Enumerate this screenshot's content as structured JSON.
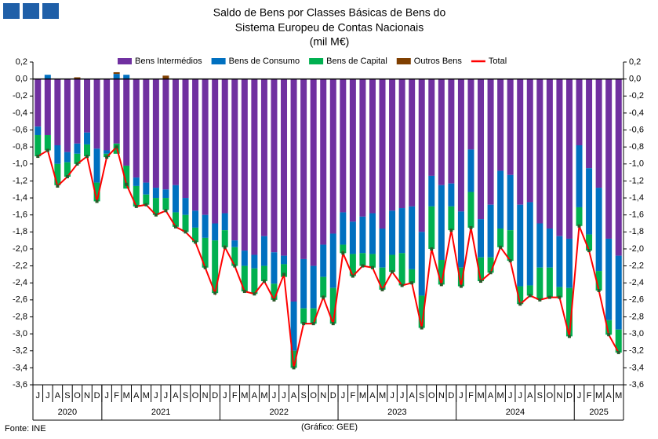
{
  "chart_data": {
    "type": "bar",
    "stacked": true,
    "title": [
      "Saldo de Bens por Classes Básicas de Bens do",
      "Sistema Europeu de Contas Nacionais",
      "(mil M€)"
    ],
    "categories": [
      "J",
      "J",
      "A",
      "S",
      "O",
      "N",
      "D",
      "J",
      "F",
      "M",
      "A",
      "M",
      "J",
      "J",
      "A",
      "S",
      "O",
      "N",
      "D",
      "J",
      "F",
      "M",
      "A",
      "M",
      "J",
      "J",
      "A",
      "S",
      "O",
      "N",
      "D",
      "J",
      "F",
      "M",
      "A",
      "M",
      "J",
      "J",
      "A",
      "S",
      "O",
      "N",
      "D",
      "J",
      "F",
      "M",
      "A",
      "M",
      "J",
      "J",
      "A",
      "S",
      "O",
      "N",
      "D",
      "J",
      "F",
      "M",
      "A",
      "M"
    ],
    "years": [
      "2020",
      "2021",
      "2022",
      "2023",
      "2024",
      "2025"
    ],
    "series": [
      {
        "name": "Bens Intermédios",
        "color": "#7030a0",
        "values": [
          -0.56,
          -0.66,
          -0.78,
          -0.86,
          -0.76,
          -0.63,
          -0.82,
          -0.84,
          -0.76,
          -1.02,
          -1.16,
          -1.22,
          -1.28,
          -1.3,
          -1.25,
          -1.4,
          -1.55,
          -1.6,
          -1.7,
          -1.58,
          -1.9,
          -2.02,
          -2.07,
          -1.85,
          -2.04,
          -2.08,
          -2.62,
          -2.12,
          -2.2,
          -1.95,
          -1.82,
          -1.57,
          -1.68,
          -1.62,
          -1.58,
          -1.76,
          -1.55,
          -1.52,
          -1.5,
          -1.8,
          -1.14,
          -1.25,
          -1.23,
          -1.56,
          -0.83,
          -1.65,
          -1.48,
          -1.08,
          -1.13,
          -1.48,
          -1.45,
          -1.7,
          -1.76,
          -1.85,
          -1.88,
          -0.78,
          -1.05,
          -1.28,
          -1.88,
          -2.08
        ]
      },
      {
        "name": "Bens de Consumo",
        "color": "#0070c0",
        "values": [
          -0.1,
          0.05,
          -0.22,
          -0.12,
          -0.12,
          -0.14,
          -0.4,
          -0.04,
          0.06,
          0.05,
          -0.1,
          -0.14,
          -0.12,
          -0.1,
          -0.32,
          -0.2,
          -0.2,
          -0.27,
          -0.2,
          -0.2,
          -0.08,
          -0.18,
          -0.16,
          -0.35,
          -0.37,
          -0.1,
          -0.58,
          -0.58,
          -0.5,
          -0.38,
          -0.64,
          -0.38,
          -0.38,
          -0.43,
          -0.48,
          -0.46,
          -0.52,
          -0.53,
          -0.74,
          -0.75,
          -0.36,
          -0.88,
          -0.27,
          -0.66,
          -0.5,
          -0.45,
          -0.62,
          -0.68,
          -0.65,
          -0.96,
          -0.98,
          -0.52,
          -0.46,
          -0.6,
          -0.58,
          -0.73,
          -0.78,
          -0.98,
          -0.96,
          -0.87
        ]
      },
      {
        "name": "Bens de Capital",
        "color": "#00b050",
        "values": [
          -0.25,
          -0.18,
          -0.25,
          -0.17,
          -0.12,
          -0.14,
          -0.22,
          -0.04,
          -0.12,
          -0.27,
          -0.24,
          -0.12,
          -0.2,
          -0.14,
          -0.17,
          -0.2,
          -0.17,
          -0.35,
          -0.62,
          -0.2,
          -0.22,
          -0.3,
          -0.3,
          -0.18,
          -0.19,
          -0.15,
          -0.2,
          -0.18,
          -0.18,
          -0.24,
          -0.42,
          -0.1,
          -0.26,
          -0.15,
          -0.16,
          -0.26,
          -0.2,
          -0.38,
          -0.16,
          -0.38,
          -0.5,
          -0.29,
          -0.28,
          -0.22,
          -0.42,
          -0.28,
          -0.18,
          -0.22,
          -0.36,
          -0.21,
          -0.12,
          -0.38,
          -0.35,
          -0.12,
          -0.57,
          -0.22,
          -0.19,
          -0.23,
          -0.17,
          -0.27
        ]
      },
      {
        "name": "Outros Bens",
        "color": "#7f3f00",
        "values": [
          0,
          0,
          0,
          0,
          0.02,
          0,
          0,
          0,
          0.02,
          0,
          0,
          0,
          0,
          0.04,
          0,
          0,
          0,
          0,
          0,
          0,
          0,
          0,
          0,
          0,
          0,
          0,
          0,
          0,
          0,
          0,
          0,
          0,
          0,
          0,
          0,
          0,
          0,
          0,
          0,
          0,
          0,
          0,
          0,
          0,
          0,
          0,
          0,
          0,
          0,
          0,
          0,
          0,
          0,
          0,
          0,
          0,
          0,
          0,
          0,
          0
        ]
      },
      {
        "name": "Total",
        "type": "line",
        "color": "#ff0000",
        "values": [
          -0.91,
          -0.84,
          -1.26,
          -1.15,
          -1.0,
          -0.91,
          -1.44,
          -0.92,
          -0.8,
          -1.24,
          -1.5,
          -1.48,
          -1.6,
          -1.55,
          -1.74,
          -1.8,
          -1.92,
          -2.22,
          -2.52,
          -1.98,
          -2.2,
          -2.5,
          -2.53,
          -2.38,
          -2.6,
          -2.3,
          -3.4,
          -2.88,
          -2.88,
          -2.57,
          -2.88,
          -2.05,
          -2.32,
          -2.2,
          -2.22,
          -2.48,
          -2.27,
          -2.43,
          -2.4,
          -2.93,
          -2.0,
          -2.42,
          -1.78,
          -2.44,
          -1.75,
          -2.38,
          -2.28,
          -1.98,
          -2.14,
          -2.65,
          -2.55,
          -2.6,
          -2.57,
          -2.57,
          -3.03,
          -1.73,
          -2.02,
          -2.49,
          -3.01,
          -3.22
        ]
      }
    ],
    "ylim": [
      -3.6,
      0.2
    ],
    "yticks": [
      {
        "value": 0.2,
        "label": "0,2"
      },
      {
        "value": 0,
        "label": "0,0"
      },
      {
        "value": -0.2,
        "label": "-0,2"
      },
      {
        "value": -0.4,
        "label": "-0,4"
      },
      {
        "value": -0.6,
        "label": "-0,6"
      },
      {
        "value": -0.8,
        "label": "-0,8"
      },
      {
        "value": -1.0,
        "label": "-1,0"
      },
      {
        "value": -1.2,
        "label": "-1,2"
      },
      {
        "value": -1.4,
        "label": "-1,4"
      },
      {
        "value": -1.6,
        "label": "-1,6"
      },
      {
        "value": -1.8,
        "label": "-1,8"
      },
      {
        "value": -2.0,
        "label": "-2,0"
      },
      {
        "value": -2.2,
        "label": "-2,2"
      },
      {
        "value": -2.4,
        "label": "-2,4"
      },
      {
        "value": -2.6,
        "label": "-2,6"
      },
      {
        "value": -2.8,
        "label": "-2,8"
      },
      {
        "value": -3.0,
        "label": "-3,0"
      },
      {
        "value": -3.2,
        "label": "-3,2"
      },
      {
        "value": -3.4,
        "label": "-3,4"
      },
      {
        "value": -3.6,
        "label": "-3,6"
      }
    ],
    "grid": false,
    "legend": "top",
    "source": "Fonte: INE",
    "credit": "(Gráfico: GEE)"
  }
}
